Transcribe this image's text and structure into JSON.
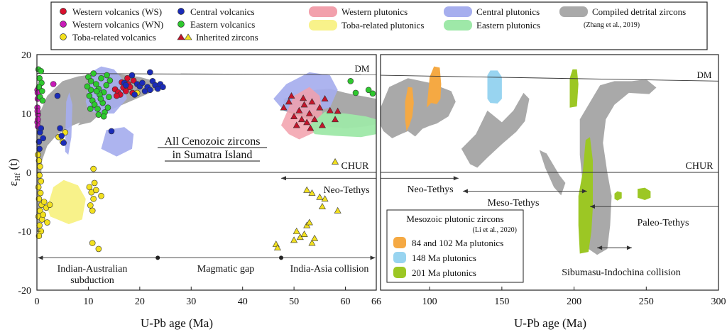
{
  "legend": {
    "items": [
      {
        "key": "ws",
        "label": "Western volcanics (WS)",
        "kind": "dot",
        "color": "#d8102e"
      },
      {
        "key": "wn",
        "label": "Western volcanics (WN)",
        "kind": "dot",
        "color": "#c81ab8"
      },
      {
        "key": "toba_v",
        "label": "Toba-related volcanics",
        "kind": "dot",
        "color": "#f2e01e"
      },
      {
        "key": "central_v",
        "label": "Central volcanics",
        "kind": "dot",
        "color": "#1a2bb8"
      },
      {
        "key": "eastern_v",
        "label": "Eastern volcanics",
        "kind": "dot",
        "color": "#2ec82e"
      },
      {
        "key": "inherited",
        "label": "Inherited zircons",
        "kind": "triangles",
        "color": "#c4142a",
        "color2": "#f2e01e"
      },
      {
        "key": "western_p",
        "label": "Western plutonics",
        "kind": "blob",
        "color": "#f2a0ac"
      },
      {
        "key": "toba_p",
        "label": "Toba-related plutonics",
        "kind": "blob",
        "color": "#f8f28a"
      },
      {
        "key": "central_p",
        "label": "Central plutonics",
        "kind": "blob",
        "color": "#a6aeee"
      },
      {
        "key": "eastern_p",
        "label": "Eastern plutonics",
        "kind": "blob",
        "color": "#9ee8a8"
      },
      {
        "key": "detrital",
        "label": "Compiled detrital zircons",
        "kind": "blob",
        "color": "#a9a9a9"
      }
    ],
    "detrital_ref": "(Zhang et al., 2019)"
  },
  "chart_data": [
    {
      "type": "scatter",
      "title": "",
      "xlabel": "U-Pb age (Ma)",
      "ylabel": "εHf (t)",
      "ylabel_parts": {
        "main": "ε",
        "sub": "Hf",
        "tail": " (t)"
      },
      "xlim": [
        0,
        66
      ],
      "ylim": [
        -20,
        20
      ],
      "xticks": [
        0,
        10,
        20,
        30,
        40,
        50,
        60,
        66
      ],
      "yticks": [
        -20,
        -10,
        0,
        10,
        20
      ],
      "reference_lines": [
        {
          "name": "DM",
          "points": [
            [
              0,
              16.8
            ],
            [
              66,
              16.6
            ]
          ]
        },
        {
          "name": "CHUR",
          "points": [
            [
              0,
              0
            ],
            [
              66,
              0
            ]
          ]
        }
      ],
      "annotations": {
        "center_line1": "All Cenozoic zircons",
        "center_line2": "in Sumatra Island",
        "dm": "DM",
        "chur": "CHUR",
        "neotethys": "Neo-Tethys",
        "subduction1": "Indian-Australian",
        "subduction2": "subduction",
        "gap": "Magmatic gap",
        "collision": "India-Asia collision"
      },
      "series": [
        {
          "name": "Western volcanics (WS)",
          "marker": "circle",
          "color": "#d8102e",
          "points": [
            [
              15.2,
              14.1
            ],
            [
              15.8,
              13.6
            ],
            [
              16.2,
              13.2
            ],
            [
              16.8,
              14.4
            ],
            [
              17.3,
              13.8
            ],
            [
              17.8,
              15.0
            ],
            [
              18.1,
              14.5
            ],
            [
              18.6,
              13.5
            ],
            [
              16.5,
              15.3
            ],
            [
              17.6,
              16.0
            ],
            [
              15.5,
              13.0
            ],
            [
              18.8,
              15.6
            ]
          ]
        },
        {
          "name": "Western volcanics (WN)",
          "marker": "circle",
          "color": "#c81ab8",
          "points": [
            [
              0.1,
              14.0
            ],
            [
              0.15,
              12.5
            ],
            [
              0.1,
              11.0
            ],
            [
              0.2,
              9.8
            ],
            [
              0.1,
              8.5
            ],
            [
              0.2,
              7.8
            ],
            [
              0.15,
              13.5
            ],
            [
              3.2,
              15.0
            ],
            [
              0.12,
              10.4
            ],
            [
              0.18,
              9.0
            ]
          ]
        },
        {
          "name": "Toba-related volcanics",
          "marker": "circle",
          "color": "#f2e01e",
          "points": [
            [
              0.2,
              3.0
            ],
            [
              0.4,
              2.0
            ],
            [
              0.6,
              1.0
            ],
            [
              0.5,
              -0.5
            ],
            [
              0.8,
              -1.5
            ],
            [
              0.3,
              -2.5
            ],
            [
              0.7,
              -3.5
            ],
            [
              0.4,
              -4.5
            ],
            [
              0.9,
              -5.5
            ],
            [
              0.6,
              -6.5
            ],
            [
              0.3,
              -7.5
            ],
            [
              1.0,
              -8.0
            ],
            [
              0.5,
              -9.0
            ],
            [
              1.4,
              -5.0
            ],
            [
              1.8,
              -6.0
            ],
            [
              1.2,
              -7.2
            ],
            [
              2.0,
              -8.5
            ],
            [
              0.8,
              -10.0
            ],
            [
              0.4,
              -10.8
            ],
            [
              2.5,
              -5.5
            ],
            [
              10.2,
              -2.5
            ],
            [
              10.6,
              -3.4
            ],
            [
              11.0,
              -4.5
            ],
            [
              10.4,
              -5.6
            ],
            [
              11.2,
              -1.8
            ],
            [
              10.8,
              -6.5
            ],
            [
              11.5,
              -3.0
            ],
            [
              11.0,
              0.6
            ],
            [
              12.5,
              -4.0
            ],
            [
              10.8,
              -12.0
            ],
            [
              12.0,
              -13.0
            ],
            [
              4.2,
              6.0
            ],
            [
              5.0,
              5.2
            ],
            [
              5.5,
              6.8
            ],
            [
              19.5,
              13.5
            ]
          ]
        },
        {
          "name": "Central volcanics",
          "marker": "circle",
          "color": "#1a2bb8",
          "points": [
            [
              0.4,
              5.2
            ],
            [
              0.6,
              6.8
            ],
            [
              0.5,
              4.0
            ],
            [
              0.8,
              7.5
            ],
            [
              1.2,
              5.8
            ],
            [
              4.5,
              7.5
            ],
            [
              4.8,
              6.2
            ],
            [
              5.2,
              5.0
            ],
            [
              14.5,
              7.0
            ],
            [
              17.0,
              15.2
            ],
            [
              17.3,
              14.8
            ],
            [
              18.5,
              16.5
            ],
            [
              19.5,
              15.0
            ],
            [
              20.0,
              14.6
            ],
            [
              20.5,
              15.2
            ],
            [
              21.0,
              13.8
            ],
            [
              21.5,
              14.5
            ],
            [
              22.0,
              14.0
            ],
            [
              22.5,
              15.5
            ],
            [
              23.0,
              14.8
            ],
            [
              23.5,
              14.2
            ],
            [
              24.0,
              15.0
            ],
            [
              24.5,
              14.5
            ],
            [
              22.0,
              17.0
            ],
            [
              4.0,
              13.0
            ],
            [
              19.0,
              13.2
            ]
          ]
        },
        {
          "name": "Eastern volcanics",
          "marker": "circle",
          "color": "#2ec82e",
          "points": [
            [
              0.3,
              17.5
            ],
            [
              0.8,
              17.2
            ],
            [
              0.5,
              16.0
            ],
            [
              0.9,
              15.2
            ],
            [
              0.4,
              14.5
            ],
            [
              1.0,
              13.8
            ],
            [
              0.6,
              12.8
            ],
            [
              1.1,
              12.2
            ],
            [
              10.0,
              16.2
            ],
            [
              10.5,
              15.5
            ],
            [
              11.0,
              16.8
            ],
            [
              11.5,
              15.0
            ],
            [
              12.0,
              14.2
            ],
            [
              12.5,
              16.0
            ],
            [
              13.0,
              13.6
            ],
            [
              13.5,
              14.8
            ],
            [
              14.0,
              12.8
            ],
            [
              10.2,
              13.0
            ],
            [
              10.8,
              12.2
            ],
            [
              11.2,
              11.5
            ],
            [
              11.8,
              10.8
            ],
            [
              12.2,
              13.2
            ],
            [
              12.8,
              11.8
            ],
            [
              13.2,
              10.2
            ],
            [
              13.8,
              11.0
            ],
            [
              10.5,
              14.0
            ],
            [
              11.6,
              13.8
            ],
            [
              12.4,
              12.5
            ],
            [
              13.6,
              16.5
            ],
            [
              14.2,
              15.6
            ],
            [
              9.8,
              14.6
            ],
            [
              10.4,
              10.8
            ],
            [
              12.0,
              9.8
            ],
            [
              13.0,
              9.5
            ],
            [
              61.0,
              15.5
            ],
            [
              62.0,
              13.5
            ],
            [
              64.5,
              14.0
            ],
            [
              65.3,
              13.4
            ]
          ]
        },
        {
          "name": "Inherited zircons (red)",
          "marker": "triangle",
          "color": "#c4142a",
          "points": [
            [
              48.0,
              11.0
            ],
            [
              49.0,
              12.0
            ],
            [
              50.0,
              9.5
            ],
            [
              50.5,
              8.0
            ],
            [
              51.0,
              10.5
            ],
            [
              51.5,
              9.0
            ],
            [
              52.0,
              11.5
            ],
            [
              52.5,
              8.5
            ],
            [
              53.0,
              10.0
            ],
            [
              53.5,
              12.0
            ],
            [
              54.0,
              9.0
            ],
            [
              55.0,
              11.0
            ],
            [
              56.0,
              12.5
            ],
            [
              57.0,
              10.5
            ],
            [
              58.0,
              9.0
            ],
            [
              49.5,
              13.0
            ],
            [
              51.8,
              12.6
            ],
            [
              53.2,
              7.5
            ],
            [
              55.5,
              8.0
            ],
            [
              58.5,
              10.4
            ]
          ]
        },
        {
          "name": "Inherited zircons (yellow)",
          "marker": "triangle",
          "color": "#f2e01e",
          "points": [
            [
              58.0,
              1.8
            ],
            [
              52.5,
              -3.0
            ],
            [
              53.5,
              -3.5
            ],
            [
              55.0,
              -4.2
            ],
            [
              56.0,
              -4.5
            ],
            [
              55.5,
              -5.8
            ],
            [
              58.5,
              -6.5
            ],
            [
              52.5,
              -9.0
            ],
            [
              50.5,
              -10.0
            ],
            [
              51.2,
              -11.0
            ],
            [
              52.0,
              -10.5
            ],
            [
              53.5,
              -12.0
            ],
            [
              50.0,
              -11.5
            ],
            [
              46.5,
              -12.2
            ],
            [
              46.8,
              -12.8
            ],
            [
              54.0,
              -11.2
            ],
            [
              53.0,
              -8.5
            ]
          ]
        }
      ]
    },
    {
      "type": "scatter",
      "title": "",
      "xlabel": "U-Pb age (Ma)",
      "ylabel": "",
      "xlim": [
        66,
        300
      ],
      "ylim": [
        -20,
        20
      ],
      "xticks": [
        66,
        100,
        150,
        200,
        250,
        300
      ],
      "reference_lines": [
        {
          "name": "DM",
          "points": [
            [
              66,
              16.5
            ],
            [
              300,
              15.5
            ]
          ]
        },
        {
          "name": "CHUR",
          "points": [
            [
              66,
              0
            ],
            [
              300,
              0
            ]
          ]
        }
      ],
      "annotations": {
        "dm": "DM",
        "chur": "CHUR",
        "neotethys": "Neo-Tethys",
        "mesotethys": "Meso-Tethys",
        "paleotethys": "Paleo-Tethys",
        "collision": "Sibumasu-Indochina collision"
      },
      "inset_legend": {
        "title": "Mesozoic plutonic zircons",
        "ref": "(Li et al., 2020)",
        "items": [
          {
            "label": "84 and 102 Ma plutonics",
            "color": "#f5a943"
          },
          {
            "label": "148 Ma plutonics",
            "color": "#98d4f0"
          },
          {
            "label": "201 Ma plutonics",
            "color": "#9cc724"
          }
        ]
      }
    }
  ]
}
